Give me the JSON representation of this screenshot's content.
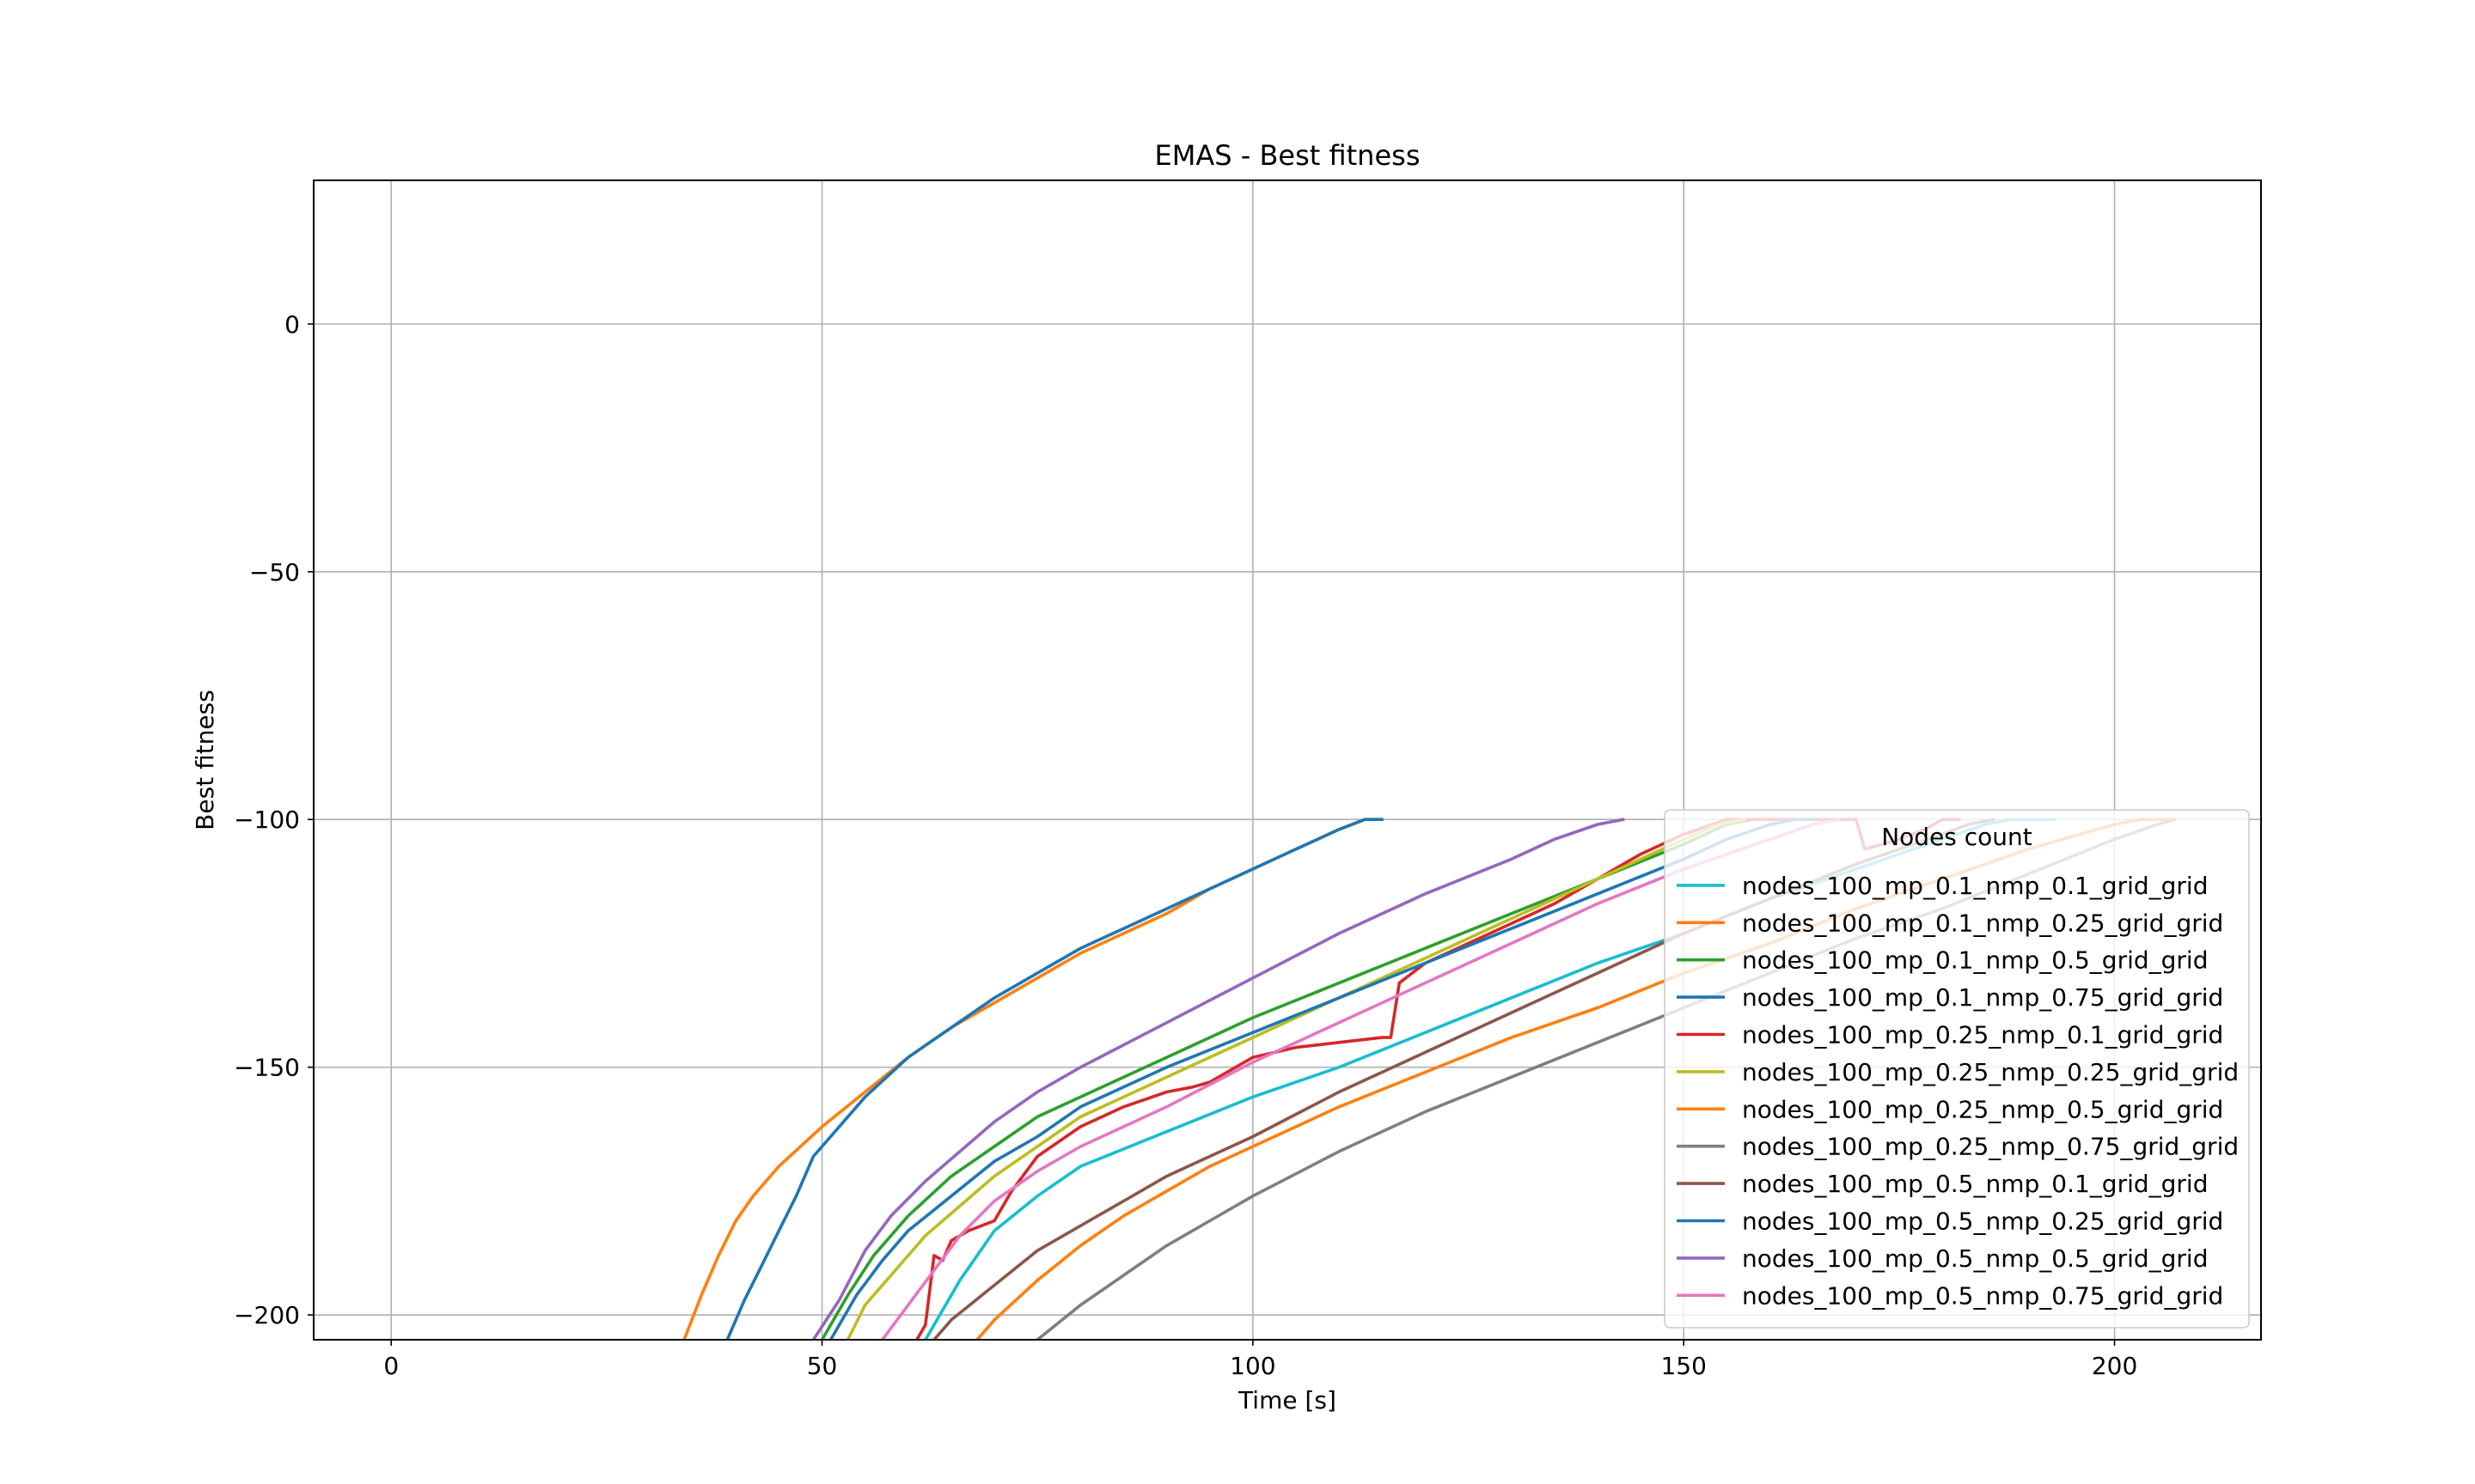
{
  "chart_data": {
    "type": "line",
    "title": "EMAS - Best fitness",
    "xlabel": "Time [s]",
    "ylabel": "Best fitness",
    "xlim": [
      -9,
      217
    ],
    "ylim": [
      -205,
      29
    ],
    "xticks": [
      0,
      50,
      100,
      150,
      200
    ],
    "xtick_labels": [
      "0",
      "50",
      "100",
      "150",
      "200"
    ],
    "yticks": [
      0,
      -50,
      -100,
      -150,
      -200
    ],
    "ytick_labels": [
      "0",
      "−50",
      "−100",
      "−150",
      "−200"
    ],
    "grid": true,
    "legend": {
      "title": "Nodes count",
      "placement": "lower right"
    },
    "series": [
      {
        "name": "nodes_100_mp_0.1_nmp_0.1_grid_grid",
        "color": "#17becf",
        "points": [
          [
            62,
            -205
          ],
          [
            66,
            -193
          ],
          [
            70,
            -183
          ],
          [
            75,
            -176
          ],
          [
            80,
            -170
          ],
          [
            90,
            -163
          ],
          [
            100,
            -156
          ],
          [
            110,
            -150
          ],
          [
            120,
            -143
          ],
          [
            130,
            -136
          ],
          [
            140,
            -129
          ],
          [
            150,
            -123
          ],
          [
            160,
            -116
          ],
          [
            170,
            -110
          ],
          [
            180,
            -104
          ],
          [
            185,
            -101
          ],
          [
            188,
            -100
          ],
          [
            193,
            -100
          ]
        ]
      },
      {
        "name": "nodes_100_mp_0.1_nmp_0.25_grid_grid",
        "color": "#ff7f0e",
        "points": [
          [
            34,
            -205
          ],
          [
            36,
            -196
          ],
          [
            38,
            -188
          ],
          [
            40,
            -181
          ],
          [
            42,
            -176
          ],
          [
            45,
            -170
          ],
          [
            50,
            -162
          ],
          [
            55,
            -155
          ],
          [
            60,
            -148
          ],
          [
            65,
            -142
          ],
          [
            70,
            -137
          ],
          [
            75,
            -132
          ],
          [
            80,
            -127
          ],
          [
            85,
            -123
          ],
          [
            90,
            -119
          ],
          [
            95,
            -114
          ],
          [
            100,
            -110
          ],
          [
            105,
            -106
          ],
          [
            110,
            -102
          ],
          [
            113,
            -100
          ],
          [
            115,
            -100
          ]
        ]
      },
      {
        "name": "nodes_100_mp_0.1_nmp_0.5_grid_grid",
        "color": "#2ca02c",
        "points": [
          [
            50,
            -205
          ],
          [
            53,
            -196
          ],
          [
            56,
            -188
          ],
          [
            60,
            -180
          ],
          [
            65,
            -172
          ],
          [
            70,
            -166
          ],
          [
            75,
            -160
          ],
          [
            80,
            -156
          ],
          [
            85,
            -152
          ],
          [
            90,
            -148
          ],
          [
            95,
            -144
          ],
          [
            100,
            -140
          ],
          [
            110,
            -133
          ],
          [
            120,
            -126
          ],
          [
            130,
            -119
          ],
          [
            140,
            -112
          ],
          [
            150,
            -105
          ],
          [
            155,
            -101
          ],
          [
            158,
            -100
          ]
        ]
      },
      {
        "name": "nodes_100_mp_0.1_nmp_0.75_grid_grid",
        "color": "#1f77b4",
        "points": [
          [
            39,
            -205
          ],
          [
            41,
            -197
          ],
          [
            43,
            -190
          ],
          [
            45,
            -183
          ],
          [
            47,
            -176
          ],
          [
            49,
            -168
          ],
          [
            52,
            -162
          ],
          [
            55,
            -156
          ],
          [
            60,
            -148
          ],
          [
            65,
            -142
          ],
          [
            70,
            -136
          ],
          [
            75,
            -131
          ],
          [
            80,
            -126
          ],
          [
            85,
            -122
          ],
          [
            90,
            -118
          ],
          [
            95,
            -114
          ],
          [
            100,
            -110
          ],
          [
            105,
            -106
          ],
          [
            110,
            -102
          ],
          [
            113,
            -100
          ],
          [
            115,
            -100
          ]
        ]
      },
      {
        "name": "nodes_100_mp_0.25_nmp_0.1_grid_grid",
        "color": "#d62728",
        "points": [
          [
            61,
            -205
          ],
          [
            62,
            -202
          ],
          [
            63,
            -188
          ],
          [
            64,
            -189
          ],
          [
            65,
            -185
          ],
          [
            67,
            -183
          ],
          [
            70,
            -181
          ],
          [
            72,
            -175
          ],
          [
            75,
            -168
          ],
          [
            80,
            -162
          ],
          [
            85,
            -158
          ],
          [
            90,
            -155
          ],
          [
            93,
            -154
          ],
          [
            95,
            -153
          ],
          [
            100,
            -148
          ],
          [
            105,
            -146
          ],
          [
            110,
            -145
          ],
          [
            115,
            -144
          ],
          [
            116,
            -144
          ],
          [
            117,
            -133
          ],
          [
            120,
            -129
          ],
          [
            125,
            -125
          ],
          [
            130,
            -121
          ],
          [
            135,
            -117
          ],
          [
            140,
            -112
          ],
          [
            145,
            -107
          ],
          [
            150,
            -103
          ],
          [
            155,
            -100
          ],
          [
            160,
            -100
          ],
          [
            170,
            -100
          ],
          [
            171,
            -106
          ],
          [
            173,
            -105
          ],
          [
            175,
            -104
          ],
          [
            178,
            -102
          ],
          [
            180,
            -100
          ],
          [
            182,
            -100
          ]
        ]
      },
      {
        "name": "nodes_100_mp_0.25_nmp_0.25_grid_grid",
        "color": "#bcbd22",
        "points": [
          [
            53,
            -205
          ],
          [
            55,
            -198
          ],
          [
            58,
            -192
          ],
          [
            62,
            -184
          ],
          [
            66,
            -178
          ],
          [
            70,
            -172
          ],
          [
            75,
            -166
          ],
          [
            80,
            -160
          ],
          [
            90,
            -152
          ],
          [
            100,
            -144
          ],
          [
            110,
            -136
          ],
          [
            120,
            -128
          ],
          [
            130,
            -120
          ],
          [
            140,
            -112
          ],
          [
            150,
            -104
          ],
          [
            154,
            -101
          ],
          [
            157,
            -100
          ]
        ]
      },
      {
        "name": "nodes_100_mp_0.25_nmp_0.5_grid_grid",
        "color": "#ff7f0e",
        "points": [
          [
            68,
            -205
          ],
          [
            70,
            -201
          ],
          [
            75,
            -193
          ],
          [
            80,
            -186
          ],
          [
            85,
            -180
          ],
          [
            90,
            -175
          ],
          [
            95,
            -170
          ],
          [
            100,
            -166
          ],
          [
            110,
            -158
          ],
          [
            120,
            -151
          ],
          [
            130,
            -144
          ],
          [
            140,
            -138
          ],
          [
            150,
            -131
          ],
          [
            160,
            -125
          ],
          [
            170,
            -118
          ],
          [
            180,
            -112
          ],
          [
            190,
            -106
          ],
          [
            200,
            -101
          ],
          [
            203,
            -100
          ],
          [
            207,
            -100
          ]
        ]
      },
      {
        "name": "nodes_100_mp_0.25_nmp_0.75_grid_grid",
        "color": "#7f7f7f",
        "points": [
          [
            75,
            -205
          ],
          [
            80,
            -198
          ],
          [
            85,
            -192
          ],
          [
            90,
            -186
          ],
          [
            95,
            -181
          ],
          [
            100,
            -176
          ],
          [
            110,
            -167
          ],
          [
            120,
            -159
          ],
          [
            130,
            -152
          ],
          [
            140,
            -145
          ],
          [
            150,
            -138
          ],
          [
            160,
            -131
          ],
          [
            170,
            -124
          ],
          [
            180,
            -118
          ],
          [
            190,
            -111
          ],
          [
            200,
            -104
          ],
          [
            205,
            -101
          ],
          [
            207,
            -100
          ]
        ]
      },
      {
        "name": "nodes_100_mp_0.5_nmp_0.1_grid_grid",
        "color": "#8c564b",
        "points": [
          [
            63,
            -205
          ],
          [
            65,
            -201
          ],
          [
            70,
            -194
          ],
          [
            75,
            -187
          ],
          [
            80,
            -182
          ],
          [
            85,
            -177
          ],
          [
            90,
            -172
          ],
          [
            95,
            -168
          ],
          [
            100,
            -164
          ],
          [
            110,
            -155
          ],
          [
            120,
            -147
          ],
          [
            130,
            -139
          ],
          [
            140,
            -131
          ],
          [
            150,
            -123
          ],
          [
            160,
            -116
          ],
          [
            170,
            -109
          ],
          [
            180,
            -103
          ],
          [
            183,
            -101
          ],
          [
            186,
            -100
          ]
        ]
      },
      {
        "name": "nodes_100_mp_0.5_nmp_0.25_grid_grid",
        "color": "#1f77b4",
        "points": [
          [
            51,
            -205
          ],
          [
            54,
            -196
          ],
          [
            57,
            -189
          ],
          [
            60,
            -183
          ],
          [
            65,
            -176
          ],
          [
            70,
            -169
          ],
          [
            75,
            -164
          ],
          [
            80,
            -158
          ],
          [
            90,
            -150
          ],
          [
            100,
            -143
          ],
          [
            110,
            -136
          ],
          [
            120,
            -129
          ],
          [
            130,
            -122
          ],
          [
            140,
            -115
          ],
          [
            150,
            -108
          ],
          [
            155,
            -104
          ],
          [
            160,
            -101
          ],
          [
            163,
            -100
          ],
          [
            165,
            -100
          ]
        ]
      },
      {
        "name": "nodes_100_mp_0.5_nmp_0.5_grid_grid",
        "color": "#9467bd",
        "points": [
          [
            49,
            -205
          ],
          [
            52,
            -197
          ],
          [
            55,
            -187
          ],
          [
            58,
            -180
          ],
          [
            62,
            -173
          ],
          [
            66,
            -167
          ],
          [
            70,
            -161
          ],
          [
            75,
            -155
          ],
          [
            80,
            -150
          ],
          [
            90,
            -141
          ],
          [
            100,
            -132
          ],
          [
            110,
            -123
          ],
          [
            120,
            -115
          ],
          [
            130,
            -108
          ],
          [
            135,
            -104
          ],
          [
            140,
            -101
          ],
          [
            143,
            -100
          ]
        ]
      },
      {
        "name": "nodes_100_mp_0.5_nmp_0.75_grid_grid",
        "color": "#e377c2",
        "points": [
          [
            57,
            -205
          ],
          [
            60,
            -198
          ],
          [
            63,
            -191
          ],
          [
            66,
            -184
          ],
          [
            70,
            -177
          ],
          [
            75,
            -171
          ],
          [
            80,
            -166
          ],
          [
            90,
            -158
          ],
          [
            100,
            -149
          ],
          [
            110,
            -141
          ],
          [
            120,
            -133
          ],
          [
            130,
            -125
          ],
          [
            140,
            -117
          ],
          [
            150,
            -110
          ],
          [
            160,
            -104
          ],
          [
            165,
            -101
          ],
          [
            168,
            -100
          ]
        ]
      }
    ]
  }
}
